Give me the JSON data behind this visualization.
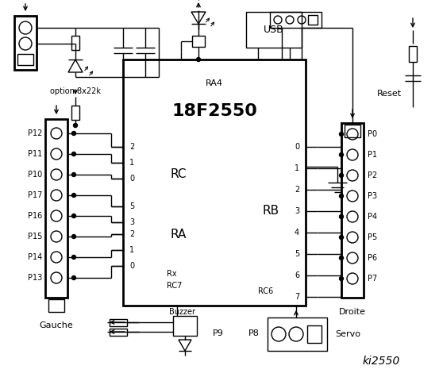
{
  "bg_color": "#ffffff",
  "fg_color": "#000000",
  "figsize": [
    5.53,
    4.8
  ],
  "dpi": 100,
  "ic_label": "18F2550",
  "ic_sublabel": "RA4",
  "rc_label": "RC",
  "ra_label": "RA",
  "rb_label": "RB",
  "left_port_labels": [
    "P12",
    "P11",
    "P10",
    "P17",
    "P16",
    "P15",
    "P14",
    "P13"
  ],
  "right_port_labels": [
    "P0",
    "P1",
    "P2",
    "P3",
    "P4",
    "P5",
    "P6",
    "P7"
  ],
  "option_text": "option 8x22k",
  "gauche_text": "Gauche",
  "droite_text": "Droite",
  "reset_text": "Reset",
  "usb_text": "USB",
  "ki2550_text": "ki2550",
  "rc_pins": [
    "2",
    "1",
    "0"
  ],
  "ra_pins": [
    "5",
    "3",
    "2",
    "1",
    "0"
  ],
  "rb_pins": [
    "0",
    "1",
    "2",
    "3",
    "4",
    "5",
    "6",
    "7"
  ]
}
